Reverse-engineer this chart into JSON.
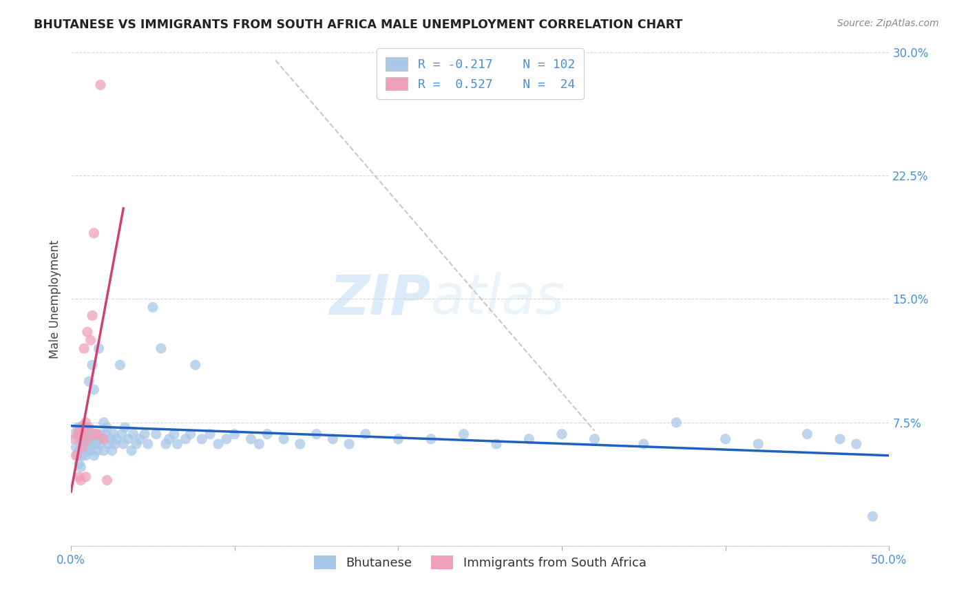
{
  "title": "BHUTANESE VS IMMIGRANTS FROM SOUTH AFRICA MALE UNEMPLOYMENT CORRELATION CHART",
  "source": "Source: ZipAtlas.com",
  "ylabel": "Male Unemployment",
  "xlim": [
    0.0,
    0.5
  ],
  "ylim": [
    0.0,
    0.3
  ],
  "xticks": [
    0.0,
    0.1,
    0.2,
    0.3,
    0.4,
    0.5
  ],
  "yticks": [
    0.0,
    0.075,
    0.15,
    0.225,
    0.3
  ],
  "xtick_labels": [
    "0.0%",
    "",
    "",
    "",
    "",
    "50.0%"
  ],
  "ytick_labels": [
    "",
    "7.5%",
    "15.0%",
    "22.5%",
    "30.0%"
  ],
  "legend_label1": "Bhutanese",
  "legend_label2": "Immigrants from South Africa",
  "R1": -0.217,
  "N1": 102,
  "R2": 0.527,
  "N2": 24,
  "color_blue": "#a8c8e8",
  "color_pink": "#f0a0b8",
  "color_blue_line": "#2060c0",
  "color_pink_line": "#d04070",
  "color_diag_line": "#bbbbbb",
  "watermark_zip": "ZIP",
  "watermark_atlas": "atlas",
  "blue_line_x": [
    0.0,
    0.5
  ],
  "blue_line_y": [
    0.073,
    0.055
  ],
  "pink_line_x": [
    0.0,
    0.032
  ],
  "pink_line_y": [
    0.033,
    0.205
  ],
  "diag_line_x": [
    0.125,
    0.32
  ],
  "diag_line_y": [
    0.295,
    0.07
  ],
  "bhutanese_x": [
    0.002,
    0.003,
    0.004,
    0.004,
    0.005,
    0.005,
    0.005,
    0.006,
    0.006,
    0.006,
    0.007,
    0.007,
    0.007,
    0.007,
    0.008,
    0.008,
    0.008,
    0.009,
    0.009,
    0.009,
    0.01,
    0.01,
    0.01,
    0.01,
    0.011,
    0.011,
    0.012,
    0.012,
    0.012,
    0.013,
    0.013,
    0.014,
    0.014,
    0.014,
    0.015,
    0.015,
    0.016,
    0.016,
    0.017,
    0.018,
    0.018,
    0.019,
    0.02,
    0.02,
    0.021,
    0.022,
    0.023,
    0.024,
    0.025,
    0.026,
    0.027,
    0.028,
    0.03,
    0.031,
    0.032,
    0.033,
    0.035,
    0.037,
    0.038,
    0.04,
    0.042,
    0.045,
    0.047,
    0.05,
    0.052,
    0.055,
    0.058,
    0.06,
    0.063,
    0.065,
    0.07,
    0.073,
    0.076,
    0.08,
    0.085,
    0.09,
    0.095,
    0.1,
    0.11,
    0.115,
    0.12,
    0.13,
    0.14,
    0.15,
    0.16,
    0.17,
    0.18,
    0.2,
    0.22,
    0.24,
    0.26,
    0.28,
    0.3,
    0.32,
    0.35,
    0.37,
    0.4,
    0.42,
    0.45,
    0.47,
    0.48,
    0.49
  ],
  "bhutanese_y": [
    0.068,
    0.06,
    0.072,
    0.055,
    0.065,
    0.058,
    0.05,
    0.062,
    0.07,
    0.048,
    0.068,
    0.06,
    0.055,
    0.073,
    0.065,
    0.058,
    0.072,
    0.062,
    0.068,
    0.055,
    0.07,
    0.063,
    0.058,
    0.072,
    0.1,
    0.065,
    0.068,
    0.062,
    0.058,
    0.11,
    0.065,
    0.095,
    0.068,
    0.055,
    0.068,
    0.062,
    0.065,
    0.058,
    0.12,
    0.068,
    0.062,
    0.065,
    0.075,
    0.058,
    0.068,
    0.072,
    0.062,
    0.065,
    0.058,
    0.068,
    0.062,
    0.065,
    0.11,
    0.068,
    0.062,
    0.072,
    0.065,
    0.058,
    0.068,
    0.062,
    0.065,
    0.068,
    0.062,
    0.145,
    0.068,
    0.12,
    0.062,
    0.065,
    0.068,
    0.062,
    0.065,
    0.068,
    0.11,
    0.065,
    0.068,
    0.062,
    0.065,
    0.068,
    0.065,
    0.062,
    0.068,
    0.065,
    0.062,
    0.068,
    0.065,
    0.062,
    0.068,
    0.065,
    0.065,
    0.068,
    0.062,
    0.065,
    0.068,
    0.065,
    0.062,
    0.075,
    0.065,
    0.062,
    0.068,
    0.065,
    0.062,
    0.018
  ],
  "sa_x": [
    0.002,
    0.003,
    0.004,
    0.005,
    0.005,
    0.006,
    0.006,
    0.007,
    0.007,
    0.008,
    0.008,
    0.009,
    0.009,
    0.01,
    0.01,
    0.011,
    0.012,
    0.013,
    0.014,
    0.015,
    0.016,
    0.018,
    0.02,
    0.022
  ],
  "sa_y": [
    0.065,
    0.055,
    0.068,
    0.07,
    0.042,
    0.068,
    0.04,
    0.072,
    0.06,
    0.12,
    0.068,
    0.075,
    0.042,
    0.13,
    0.065,
    0.072,
    0.125,
    0.14,
    0.19,
    0.068,
    0.068,
    0.28,
    0.065,
    0.04
  ]
}
